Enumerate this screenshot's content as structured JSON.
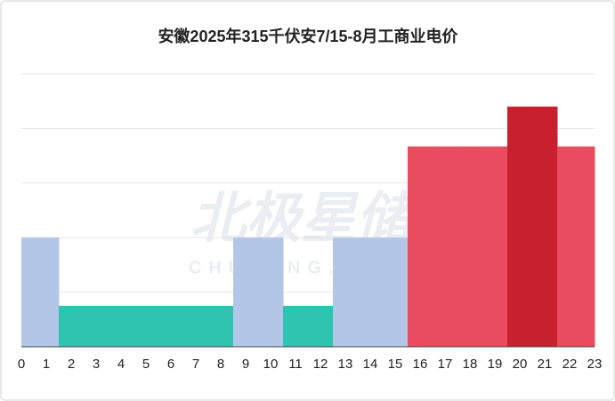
{
  "chart_data": {
    "type": "bar",
    "title": "安徽2025年315千伏安7/15-8月工商业电价",
    "watermark": "北极星储能网",
    "watermark_sub": "CHUNENG.BJX.COM.CN",
    "x": [
      0,
      1,
      2,
      3,
      4,
      5,
      6,
      7,
      8,
      9,
      10,
      11,
      12,
      13,
      14,
      15,
      16,
      17,
      18,
      19,
      20,
      21,
      22,
      23
    ],
    "values": [
      2,
      2,
      0.75,
      0.75,
      0.75,
      0.75,
      0.75,
      0.75,
      0.75,
      2,
      2,
      0.75,
      0.75,
      2,
      2,
      2,
      3.67,
      3.67,
      3.67,
      3.67,
      4.4,
      4.4,
      3.67,
      3.67
    ],
    "colors": [
      "#b4c6e7",
      "#b4c6e7",
      "#2ec4b0",
      "#2ec4b0",
      "#2ec4b0",
      "#2ec4b0",
      "#2ec4b0",
      "#2ec4b0",
      "#2ec4b0",
      "#b4c6e7",
      "#b4c6e7",
      "#2ec4b0",
      "#2ec4b0",
      "#b4c6e7",
      "#b4c6e7",
      "#b4c6e7",
      "#e84c5e",
      "#e84c5e",
      "#e84c5e",
      "#e84c5e",
      "#c8202f",
      "#c8202f",
      "#e84c5e",
      "#e84c5e"
    ],
    "xlim": [
      0,
      23
    ],
    "ylim": [
      0,
      5
    ],
    "yticks": [
      0,
      1,
      2,
      3,
      4,
      5
    ],
    "grid": true
  }
}
